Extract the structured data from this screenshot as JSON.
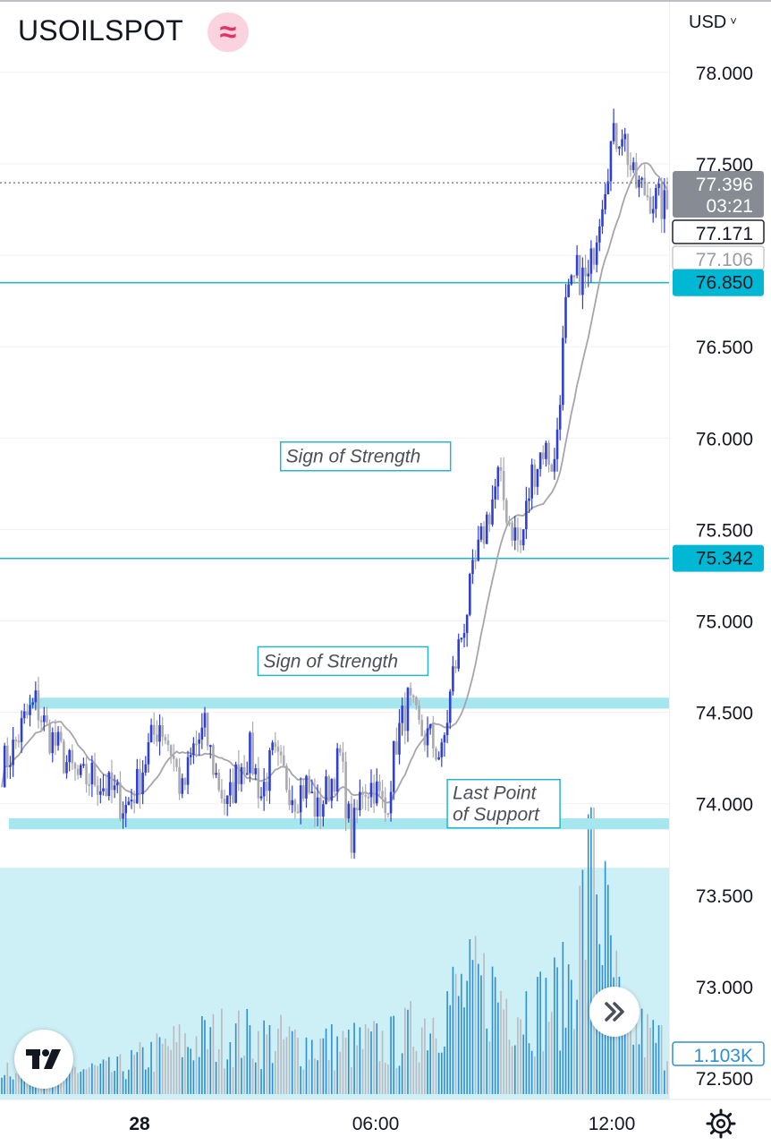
{
  "header": {
    "symbol": "USOILSPOT",
    "badge_glyph": "≈",
    "currency": "USD",
    "currency_chevron": "˅"
  },
  "colors": {
    "up_candle": "#2f3fd6",
    "down_candle": "#a9a9b0",
    "ma_line": "#a5a5ab",
    "level_line": "#26b6cc",
    "zone_fill": "#a6e6ef",
    "volume_fill": "#cdeff6",
    "price_tag_bg": "#878b94",
    "level_tag_bg": "#00b8d4",
    "volume_bar": "#2f8fd0"
  },
  "chart_data": {
    "type": "candlestick",
    "price_axis": {
      "ticks": [
        "78.000",
        "77.500",
        "76.500",
        "76.000",
        "75.500",
        "75.000",
        "74.500",
        "74.000",
        "73.500",
        "73.000",
        "72.500"
      ],
      "range": [
        72.45,
        78.2
      ]
    },
    "time_axis": {
      "labels": [
        "28",
        "06:00",
        "12:00"
      ]
    },
    "price_labels": {
      "last_price": "77.396",
      "countdown": "03:21",
      "ma_fast": "77.171",
      "ma_slow": "77.106",
      "volume": "1.103K"
    },
    "levels": [
      {
        "value": 76.85,
        "label": "76.850"
      },
      {
        "value": 75.342,
        "label": "75.342"
      }
    ],
    "zones": [
      {
        "low": 74.52,
        "high": 74.58
      },
      {
        "low": 73.86,
        "high": 73.92
      }
    ],
    "volume_zone_top": 73.65,
    "annotations": [
      {
        "text": "Sign of Strength",
        "price": 75.9,
        "time_index": 129
      },
      {
        "text": "Sign of Strength",
        "price": 74.78,
        "time_index": 121
      },
      {
        "text": "Last Point",
        "text2": "of Support",
        "price": 74.0,
        "time_index": 158
      }
    ],
    "series_keypoints": [
      [
        0,
        74.2
      ],
      [
        4,
        74.3
      ],
      [
        8,
        74.45
      ],
      [
        12,
        74.55
      ],
      [
        16,
        74.4
      ],
      [
        20,
        74.3
      ],
      [
        24,
        74.2
      ],
      [
        28,
        74.12
      ],
      [
        32,
        74.15
      ],
      [
        36,
        74.1
      ],
      [
        40,
        74.05
      ],
      [
        44,
        73.98
      ],
      [
        48,
        74.1
      ],
      [
        52,
        74.3
      ],
      [
        56,
        74.45
      ],
      [
        60,
        74.3
      ],
      [
        64,
        74.05
      ],
      [
        68,
        74.3
      ],
      [
        72,
        74.4
      ],
      [
        76,
        74.15
      ],
      [
        80,
        73.98
      ],
      [
        84,
        74.2
      ],
      [
        88,
        74.28
      ],
      [
        92,
        74.05
      ],
      [
        96,
        74.25
      ],
      [
        100,
        74.15
      ],
      [
        104,
        74.05
      ],
      [
        108,
        74.1
      ],
      [
        112,
        73.95
      ],
      [
        116,
        74.1
      ],
      [
        120,
        74.25
      ],
      [
        124,
        73.8
      ],
      [
        128,
        74.1
      ],
      [
        132,
        74.1
      ],
      [
        136,
        73.95
      ],
      [
        140,
        74.35
      ],
      [
        144,
        74.55
      ],
      [
        148,
        74.4
      ],
      [
        152,
        74.35
      ],
      [
        156,
        74.25
      ],
      [
        160,
        74.7
      ],
      [
        164,
        75.0
      ],
      [
        168,
        75.3
      ],
      [
        172,
        75.55
      ],
      [
        176,
        75.78
      ],
      [
        180,
        75.55
      ],
      [
        184,
        75.4
      ],
      [
        188,
        75.8
      ],
      [
        192,
        75.95
      ],
      [
        196,
        75.85
      ],
      [
        200,
        76.7
      ],
      [
        204,
        76.9
      ],
      [
        208,
        76.85
      ],
      [
        212,
        77.25
      ],
      [
        216,
        77.6
      ],
      [
        220,
        77.7
      ],
      [
        224,
        77.4
      ],
      [
        228,
        77.35
      ],
      [
        232,
        77.3
      ],
      [
        236,
        77.25
      ]
    ],
    "candle_count": 237,
    "volume_keypoints": [
      [
        0,
        0.12
      ],
      [
        40,
        0.1
      ],
      [
        60,
        0.2
      ],
      [
        80,
        0.25
      ],
      [
        100,
        0.22
      ],
      [
        120,
        0.2
      ],
      [
        140,
        0.22
      ],
      [
        150,
        0.3
      ],
      [
        160,
        0.4
      ],
      [
        170,
        0.45
      ],
      [
        180,
        0.4
      ],
      [
        190,
        0.36
      ],
      [
        200,
        0.42
      ],
      [
        210,
        0.95
      ],
      [
        220,
        0.3
      ],
      [
        236,
        0.2
      ]
    ],
    "volume_max": 1.0
  }
}
